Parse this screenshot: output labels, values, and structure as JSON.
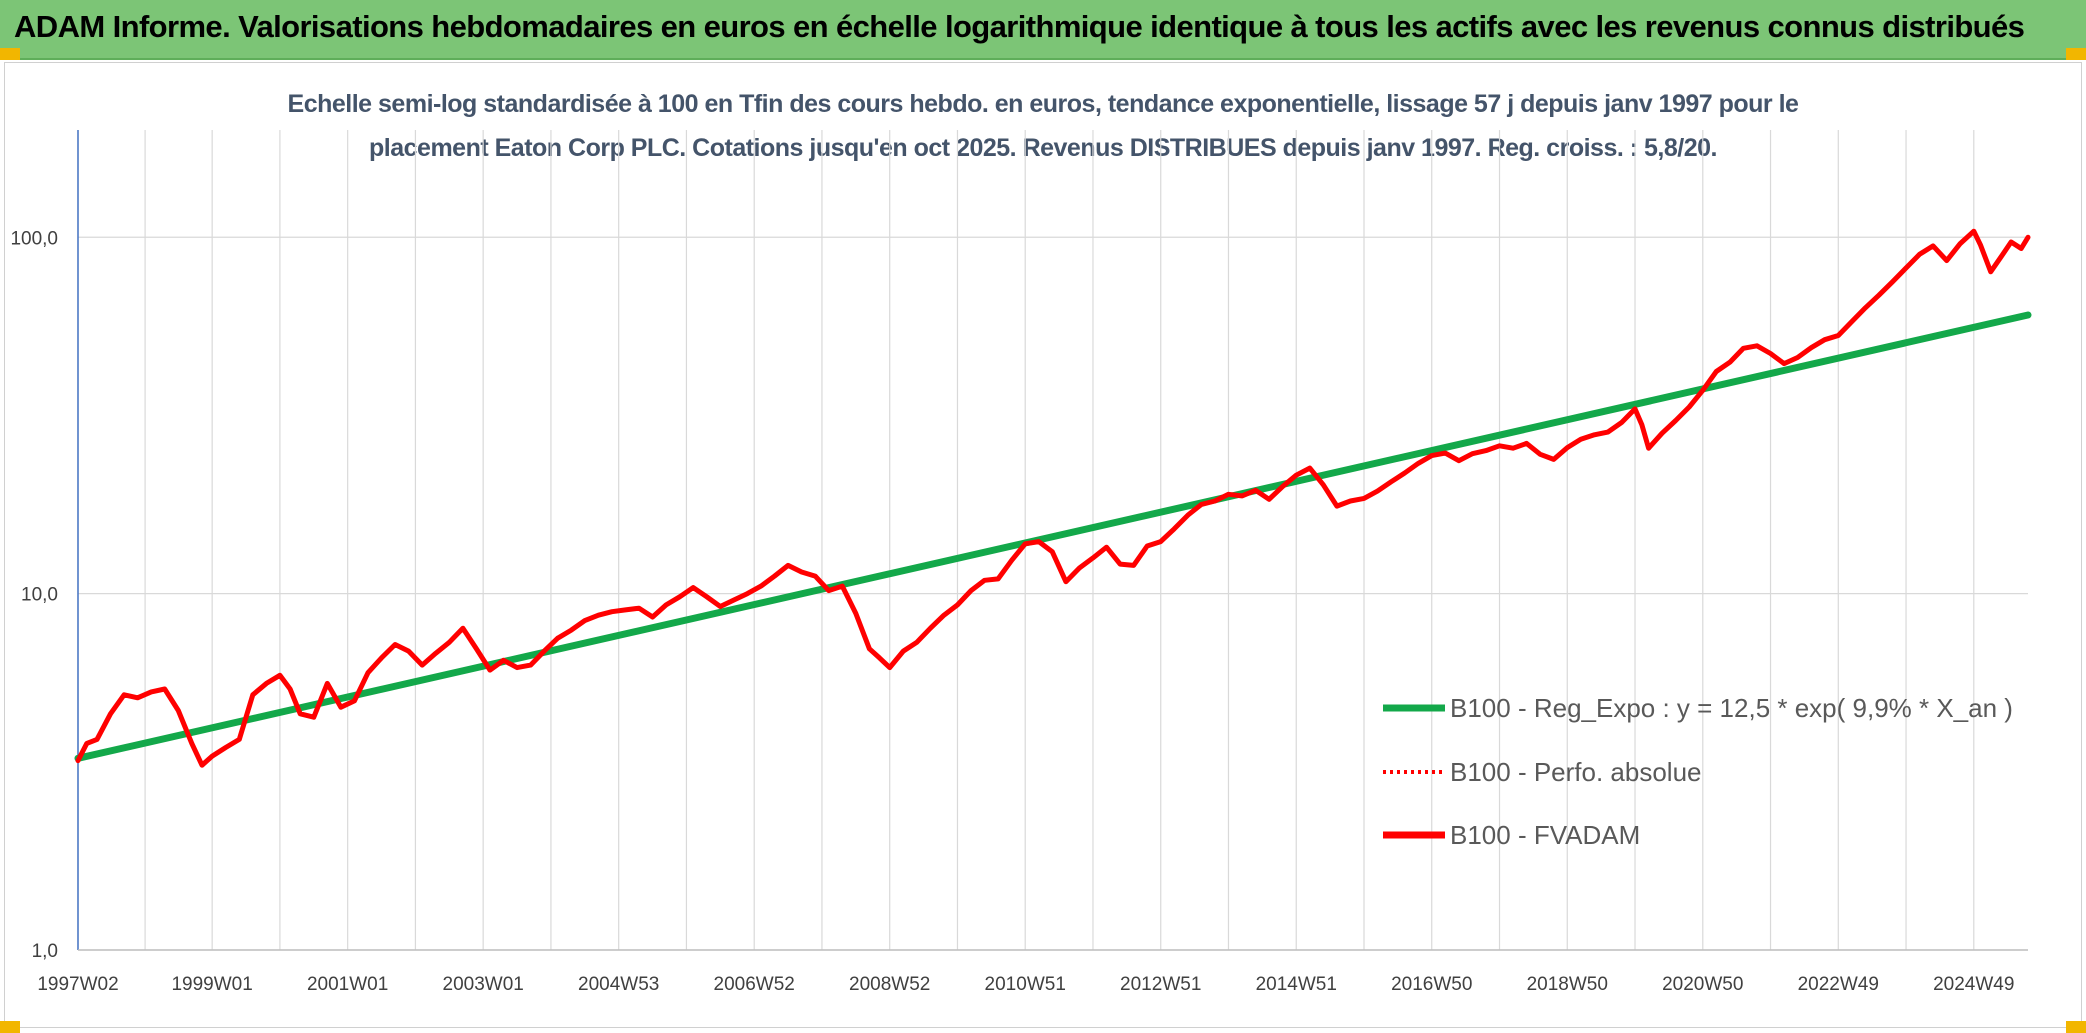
{
  "banner": {
    "title": "ADAM Informe. Valorisations hebdomadaires en euros en échelle logarithmique identique à tous les actifs avec les revenus connus distribués"
  },
  "colors": {
    "banner_bg": "#7cc576",
    "corner_accent": "#f2b600",
    "trend_line": "#13a84a",
    "fvadam_line": "#ff0000",
    "perf_line": "#ff0000",
    "subtitle_text": "#44546a",
    "grid": "#d9d9d9"
  },
  "chart_data": {
    "type": "line",
    "title_lines": [
      "Echelle semi-log standardisée à 100 en Tfin des cours hebdo. en euros, tendance exponentielle, lissage 57 j depuis janv 1997 pour le",
      "placement Eaton Corp PLC. Cotations jusqu'en oct 2025. Revenus DISTRIBUES depuis janv 1997. Reg. croiss. : 5,8/20."
    ],
    "y_scale": "log",
    "ylim": [
      1,
      200
    ],
    "y_ticks": [
      {
        "value": 1,
        "label": "1,0"
      },
      {
        "value": 10,
        "label": "10,0"
      },
      {
        "value": 100,
        "label": "100,0"
      }
    ],
    "x_range": [
      1997.02,
      2025.8
    ],
    "x_ticks": [
      {
        "x": 1997.02,
        "label": "1997W02"
      },
      {
        "x": 1999.0,
        "label": "1999W01"
      },
      {
        "x": 2001.0,
        "label": "2001W01"
      },
      {
        "x": 2003.0,
        "label": "2003W01"
      },
      {
        "x": 2005.0,
        "label": "2004W53"
      },
      {
        "x": 2007.0,
        "label": "2006W52"
      },
      {
        "x": 2009.0,
        "label": "2008W52"
      },
      {
        "x": 2011.0,
        "label": "2010W51"
      },
      {
        "x": 2013.0,
        "label": "2012W51"
      },
      {
        "x": 2015.0,
        "label": "2014W51"
      },
      {
        "x": 2017.0,
        "label": "2016W50"
      },
      {
        "x": 2019.0,
        "label": "2018W50"
      },
      {
        "x": 2021.0,
        "label": "2020W50"
      },
      {
        "x": 2023.0,
        "label": "2022W49"
      },
      {
        "x": 2025.0,
        "label": "2024W49"
      }
    ],
    "grid": {
      "vertical": true,
      "horizontal": true
    },
    "legend_position": "right",
    "series": [
      {
        "name": "B100 - Reg_Expo : y = 12,5 * exp( 9,9% *  X_an )",
        "style": "solid",
        "color": "#13a84a",
        "points": [
          [
            1997.02,
            3.45
          ],
          [
            2025.8,
            60.5
          ]
        ]
      },
      {
        "name": "B100 - Perfo. absolue",
        "style": "dotted",
        "color": "#ff0000",
        "points": []
      },
      {
        "name": "B100 - FVADAM",
        "style": "solid",
        "color": "#ff0000",
        "points": [
          [
            1997.02,
            3.4
          ],
          [
            1997.15,
            3.8
          ],
          [
            1997.3,
            3.9
          ],
          [
            1997.5,
            4.6
          ],
          [
            1997.7,
            5.2
          ],
          [
            1997.9,
            5.1
          ],
          [
            1998.1,
            5.3
          ],
          [
            1998.3,
            5.4
          ],
          [
            1998.5,
            4.7
          ],
          [
            1998.7,
            3.8
          ],
          [
            1998.85,
            3.3
          ],
          [
            1999.0,
            3.5
          ],
          [
            1999.2,
            3.7
          ],
          [
            1999.4,
            3.9
          ],
          [
            1999.6,
            5.2
          ],
          [
            1999.8,
            5.6
          ],
          [
            2000.0,
            5.9
          ],
          [
            2000.15,
            5.4
          ],
          [
            2000.3,
            4.6
          ],
          [
            2000.5,
            4.5
          ],
          [
            2000.7,
            5.6
          ],
          [
            2000.9,
            4.8
          ],
          [
            2001.1,
            5.0
          ],
          [
            2001.3,
            6.0
          ],
          [
            2001.5,
            6.6
          ],
          [
            2001.7,
            7.2
          ],
          [
            2001.9,
            6.9
          ],
          [
            2002.1,
            6.3
          ],
          [
            2002.3,
            6.8
          ],
          [
            2002.5,
            7.3
          ],
          [
            2002.7,
            8.0
          ],
          [
            2002.9,
            7.0
          ],
          [
            2003.1,
            6.1
          ],
          [
            2003.3,
            6.5
          ],
          [
            2003.5,
            6.2
          ],
          [
            2003.7,
            6.3
          ],
          [
            2003.9,
            6.9
          ],
          [
            2004.1,
            7.5
          ],
          [
            2004.3,
            7.9
          ],
          [
            2004.5,
            8.4
          ],
          [
            2004.7,
            8.7
          ],
          [
            2004.9,
            8.9
          ],
          [
            2005.1,
            9.0
          ],
          [
            2005.3,
            9.1
          ],
          [
            2005.5,
            8.6
          ],
          [
            2005.7,
            9.3
          ],
          [
            2005.9,
            9.8
          ],
          [
            2006.1,
            10.4
          ],
          [
            2006.3,
            9.8
          ],
          [
            2006.5,
            9.2
          ],
          [
            2006.7,
            9.6
          ],
          [
            2006.9,
            10.0
          ],
          [
            2007.1,
            10.5
          ],
          [
            2007.3,
            11.2
          ],
          [
            2007.5,
            12.0
          ],
          [
            2007.7,
            11.5
          ],
          [
            2007.9,
            11.2
          ],
          [
            2008.1,
            10.2
          ],
          [
            2008.3,
            10.5
          ],
          [
            2008.5,
            8.8
          ],
          [
            2008.7,
            7.0
          ],
          [
            2008.85,
            6.6
          ],
          [
            2009.0,
            6.2
          ],
          [
            2009.2,
            6.9
          ],
          [
            2009.4,
            7.3
          ],
          [
            2009.6,
            8.0
          ],
          [
            2009.8,
            8.7
          ],
          [
            2010.0,
            9.3
          ],
          [
            2010.2,
            10.2
          ],
          [
            2010.4,
            10.9
          ],
          [
            2010.6,
            11.0
          ],
          [
            2010.8,
            12.4
          ],
          [
            2011.0,
            13.8
          ],
          [
            2011.2,
            14.0
          ],
          [
            2011.4,
            13.1
          ],
          [
            2011.6,
            10.8
          ],
          [
            2011.8,
            11.8
          ],
          [
            2012.0,
            12.6
          ],
          [
            2012.2,
            13.5
          ],
          [
            2012.4,
            12.1
          ],
          [
            2012.6,
            12.0
          ],
          [
            2012.8,
            13.6
          ],
          [
            2013.0,
            14.0
          ],
          [
            2013.2,
            15.2
          ],
          [
            2013.4,
            16.6
          ],
          [
            2013.6,
            17.8
          ],
          [
            2013.8,
            18.2
          ],
          [
            2014.0,
            19.0
          ],
          [
            2014.2,
            18.8
          ],
          [
            2014.4,
            19.5
          ],
          [
            2014.6,
            18.4
          ],
          [
            2014.8,
            20.0
          ],
          [
            2015.0,
            21.5
          ],
          [
            2015.2,
            22.5
          ],
          [
            2015.4,
            20.2
          ],
          [
            2015.6,
            17.6
          ],
          [
            2015.8,
            18.2
          ],
          [
            2016.0,
            18.5
          ],
          [
            2016.2,
            19.4
          ],
          [
            2016.4,
            20.6
          ],
          [
            2016.6,
            21.8
          ],
          [
            2016.8,
            23.2
          ],
          [
            2017.0,
            24.4
          ],
          [
            2017.2,
            24.8
          ],
          [
            2017.4,
            23.6
          ],
          [
            2017.6,
            24.7
          ],
          [
            2017.8,
            25.2
          ],
          [
            2018.0,
            26.0
          ],
          [
            2018.2,
            25.6
          ],
          [
            2018.4,
            26.4
          ],
          [
            2018.6,
            24.6
          ],
          [
            2018.8,
            23.8
          ],
          [
            2019.0,
            25.7
          ],
          [
            2019.2,
            27.1
          ],
          [
            2019.4,
            27.9
          ],
          [
            2019.6,
            28.4
          ],
          [
            2019.8,
            30.2
          ],
          [
            2020.0,
            33.0
          ],
          [
            2020.1,
            29.8
          ],
          [
            2020.2,
            25.6
          ],
          [
            2020.4,
            28.2
          ],
          [
            2020.6,
            30.6
          ],
          [
            2020.8,
            33.4
          ],
          [
            2021.0,
            37.2
          ],
          [
            2021.2,
            42.0
          ],
          [
            2021.4,
            44.6
          ],
          [
            2021.6,
            48.8
          ],
          [
            2021.8,
            49.6
          ],
          [
            2022.0,
            47.2
          ],
          [
            2022.2,
            44.2
          ],
          [
            2022.4,
            46.0
          ],
          [
            2022.6,
            49.0
          ],
          [
            2022.8,
            51.6
          ],
          [
            2023.0,
            53.0
          ],
          [
            2023.2,
            58.0
          ],
          [
            2023.4,
            63.4
          ],
          [
            2023.6,
            68.8
          ],
          [
            2023.8,
            75.0
          ],
          [
            2024.0,
            82.0
          ],
          [
            2024.2,
            89.6
          ],
          [
            2024.4,
            94.6
          ],
          [
            2024.6,
            86.0
          ],
          [
            2024.8,
            96.0
          ],
          [
            2025.0,
            104.0
          ],
          [
            2025.1,
            95.0
          ],
          [
            2025.25,
            80.0
          ],
          [
            2025.4,
            88.0
          ],
          [
            2025.55,
            97.0
          ],
          [
            2025.7,
            93.0
          ],
          [
            2025.8,
            100.0
          ]
        ]
      }
    ]
  }
}
